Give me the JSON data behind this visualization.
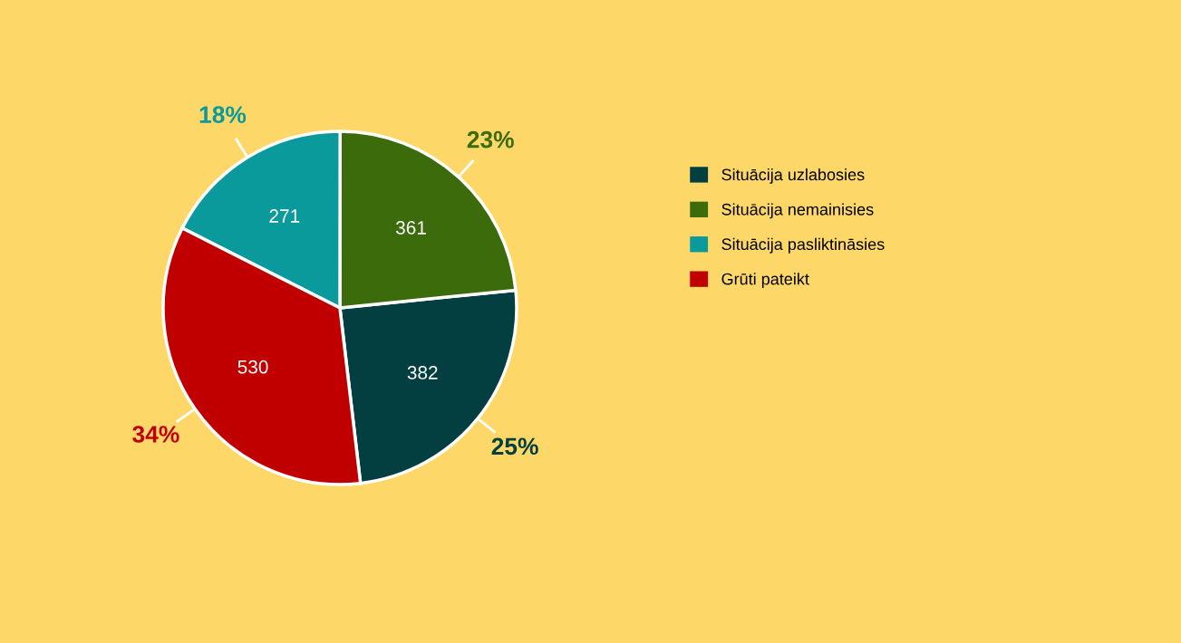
{
  "chart_data": {
    "type": "pie",
    "categories": [
      "Situācija uzlabosies",
      "Situācija nemainisies",
      "Situācija pasliktināsies",
      "Grūti pateikt"
    ],
    "values": [
      382,
      361,
      271,
      530
    ],
    "colors": [
      "#033f40",
      "#3b6b0b",
      "#0b9a9c",
      "#c00000"
    ],
    "data_labels": true,
    "annotations": [
      "25%",
      "23%",
      "18%",
      "34%"
    ],
    "legend": "right"
  }
}
